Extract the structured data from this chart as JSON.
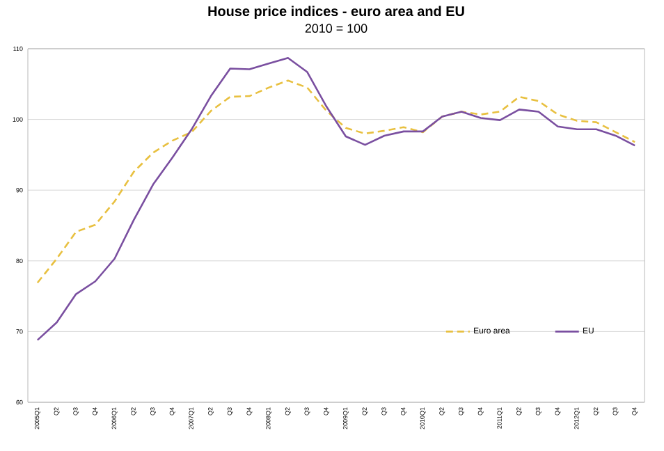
{
  "chart_data": {
    "type": "line",
    "title": "House price indices - euro area and EU",
    "subtitle": "2010 = 100",
    "categories": [
      "2005Q1",
      "Q2",
      "Q3",
      "Q4",
      "2006Q1",
      "Q2",
      "Q3",
      "Q4",
      "2007Q1",
      "Q2",
      "Q3",
      "Q4",
      "2008Q1",
      "Q2",
      "Q3",
      "Q4",
      "2009Q1",
      "Q2",
      "Q3",
      "Q4",
      "2010Q1",
      "Q2",
      "Q3",
      "Q4",
      "2011Q1",
      "Q2",
      "Q3",
      "Q4",
      "2012Q1",
      "Q2",
      "Q3",
      "Q4"
    ],
    "series": [
      {
        "name": "Euro area",
        "color": "#e8c040",
        "line_style": "dashed",
        "values": [
          76.9,
          80.3,
          84.1,
          85.1,
          88.4,
          92.6,
          95.3,
          97.0,
          98.2,
          101.2,
          103.2,
          103.3,
          104.5,
          105.5,
          104.5,
          101.2,
          98.8,
          98.0,
          98.4,
          98.9,
          98.2,
          100.4,
          101.1,
          100.7,
          101.1,
          103.2,
          102.6,
          100.7,
          99.8,
          99.6,
          98.2,
          96.8
        ]
      },
      {
        "name": "EU",
        "color": "#7a4fa0",
        "line_style": "solid",
        "values": [
          68.8,
          71.3,
          75.3,
          77.1,
          80.3,
          85.8,
          90.8,
          94.6,
          98.6,
          103.3,
          107.2,
          107.1,
          107.9,
          108.7,
          106.7,
          101.8,
          97.6,
          96.4,
          97.7,
          98.3,
          98.3,
          100.4,
          101.1,
          100.2,
          99.9,
          101.4,
          101.1,
          99.0,
          98.6,
          98.6,
          97.7,
          96.3
        ]
      }
    ],
    "ylim": [
      60,
      110
    ],
    "yticks": [
      60,
      70,
      80,
      90,
      100,
      110
    ],
    "grid": "y",
    "legend": "bottom right",
    "marker": "none"
  }
}
